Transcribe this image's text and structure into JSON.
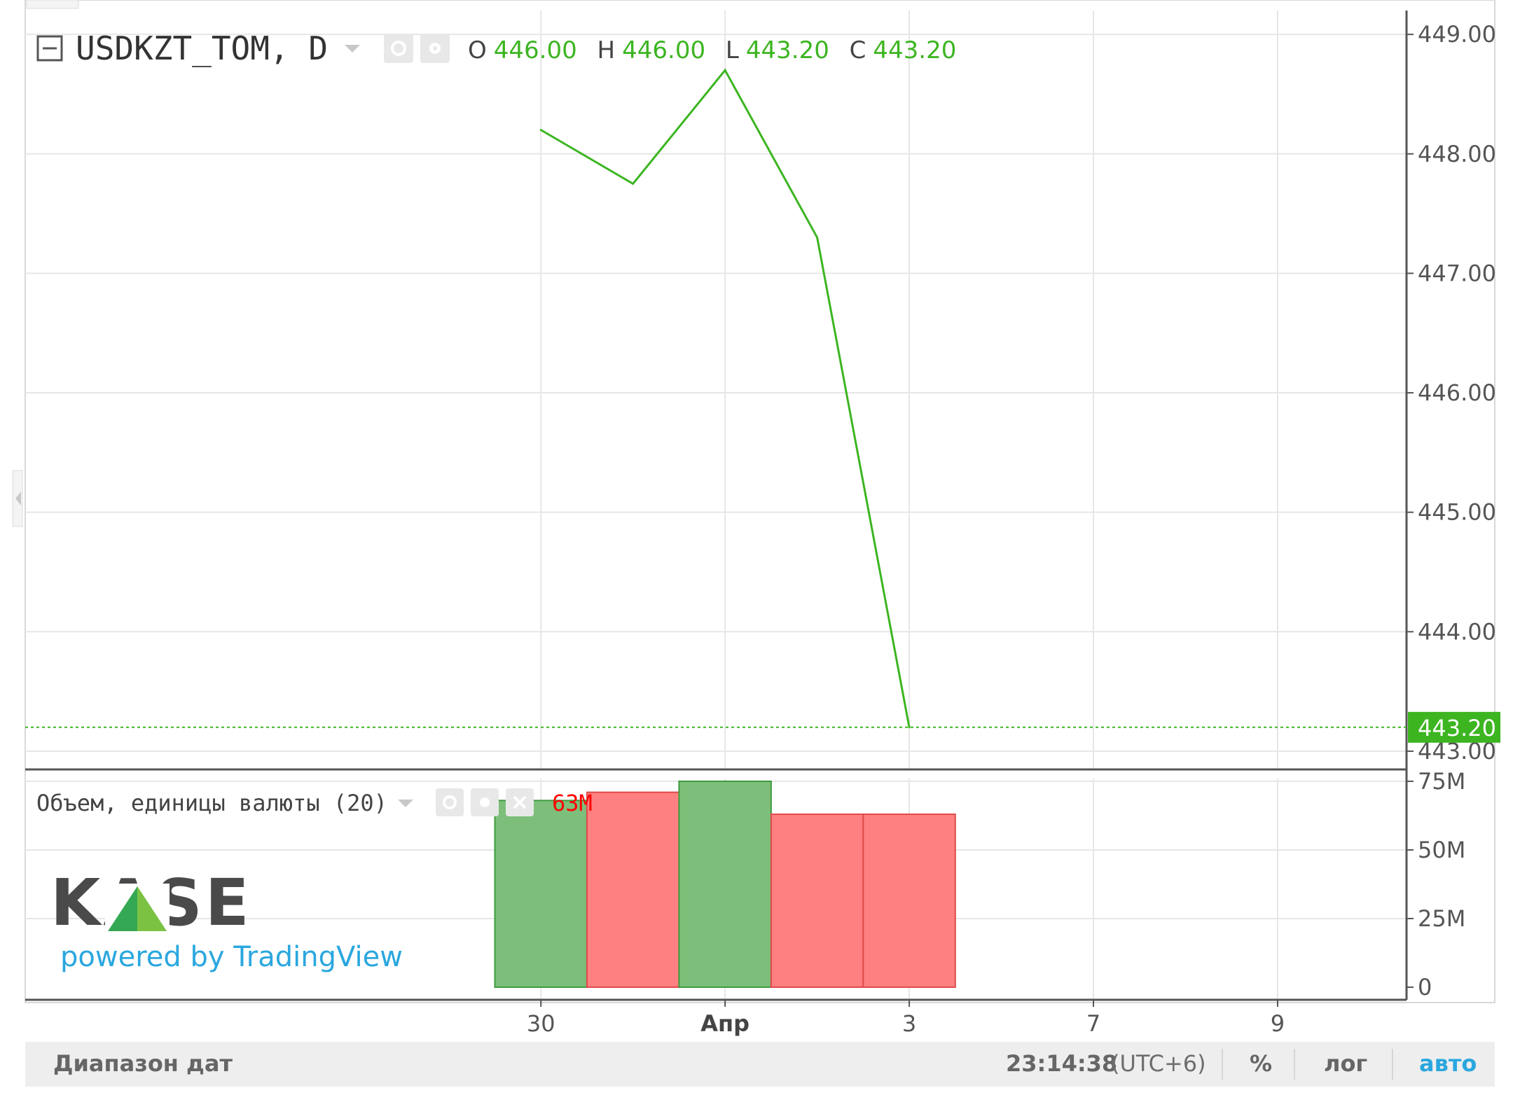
{
  "chart_data": {
    "type": "line",
    "symbol": "USDKZT_TOM, D",
    "ohlc": [
      {
        "key": "O",
        "value": "446.00"
      },
      {
        "key": "H",
        "value": "446.00"
      },
      {
        "key": "L",
        "value": "443.20"
      },
      {
        "key": "C",
        "value": "443.20"
      }
    ],
    "price_series": {
      "x": [
        0,
        1,
        2,
        3,
        4
      ],
      "values": [
        448.2,
        447.75,
        448.7,
        447.3,
        443.2
      ],
      "color": "#3cb521"
    },
    "last_price": {
      "value": 443.2,
      "label": "443.20",
      "color": "#3cb521"
    },
    "price_ylim": [
      442.9,
      449.2
    ],
    "price_ticks": [
      {
        "value": 449,
        "label": "449.00"
      },
      {
        "value": 448,
        "label": "448.00"
      },
      {
        "value": 447,
        "label": "447.00"
      },
      {
        "value": 446,
        "label": "446.00"
      },
      {
        "value": 445,
        "label": "445.00"
      },
      {
        "value": 444,
        "label": "444.00"
      },
      {
        "value": 443,
        "label": "443.00"
      }
    ],
    "volume": {
      "title": "Объем, единицы валюты (20)",
      "last_label": "63M",
      "values": [
        68,
        71,
        75,
        63,
        63
      ],
      "colors": [
        "green",
        "red",
        "green",
        "red",
        "red"
      ],
      "ylim": [
        0,
        76
      ],
      "ticks": [
        {
          "value": 75,
          "label": "75M"
        },
        {
          "value": 50,
          "label": "50M"
        },
        {
          "value": 25,
          "label": "25M"
        },
        {
          "value": 0,
          "label": "0"
        }
      ]
    },
    "x_ticks": [
      {
        "x": 0,
        "label": "30",
        "bold": false
      },
      {
        "x": 2,
        "label": "Апр",
        "bold": true
      },
      {
        "x": 4,
        "label": "3",
        "bold": false
      },
      {
        "x": 6,
        "label": "7",
        "bold": false
      },
      {
        "x": 8,
        "label": "9",
        "bold": false
      }
    ],
    "x_range": [
      -5.6,
      9.4
    ],
    "grid": true
  },
  "branding": {
    "logo": "KASE",
    "powered_by": "powered by TradingView"
  },
  "bottom_bar": {
    "date_range": "Диапазон дат",
    "time": "23:14:38",
    "timezone": "(UTC+6)",
    "percent": "%",
    "log": "лог",
    "auto": "авто"
  },
  "icons": {
    "collapse": "minus-square-icon",
    "eye": "eye-icon",
    "settings": "gear-icon",
    "close": "close-icon",
    "dropdown": "chevron-down-icon"
  },
  "colors": {
    "up": "#3cb521",
    "bar_up": "#7dbf7a",
    "bar_down": "#ff8080",
    "accent": "#2aa7de"
  }
}
